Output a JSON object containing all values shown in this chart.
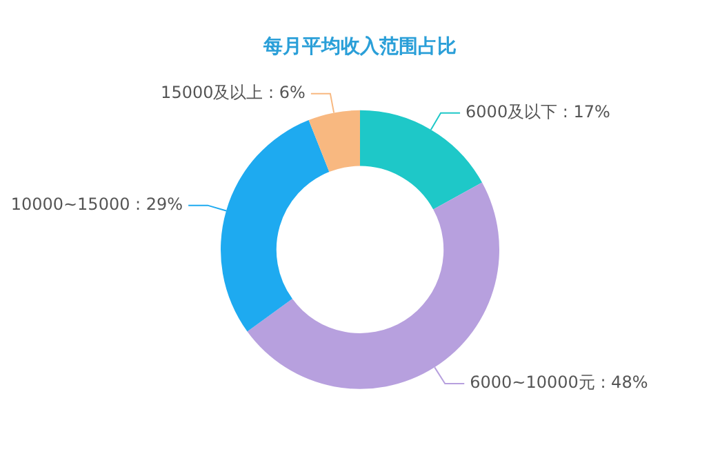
{
  "chart_data": {
    "type": "donut",
    "title": "每月平均收入范围占比",
    "categories": [
      "6000及以下",
      "6000~10000元",
      "10000~15000",
      "15000及以上"
    ],
    "values": [
      17,
      48,
      29,
      6
    ],
    "colors": [
      "#1ec8c8",
      "#b7a0de",
      "#1eaaf0",
      "#f8b880"
    ],
    "value_labels": [
      "17%",
      "48%",
      "29%",
      "6%"
    ],
    "legend": false
  }
}
